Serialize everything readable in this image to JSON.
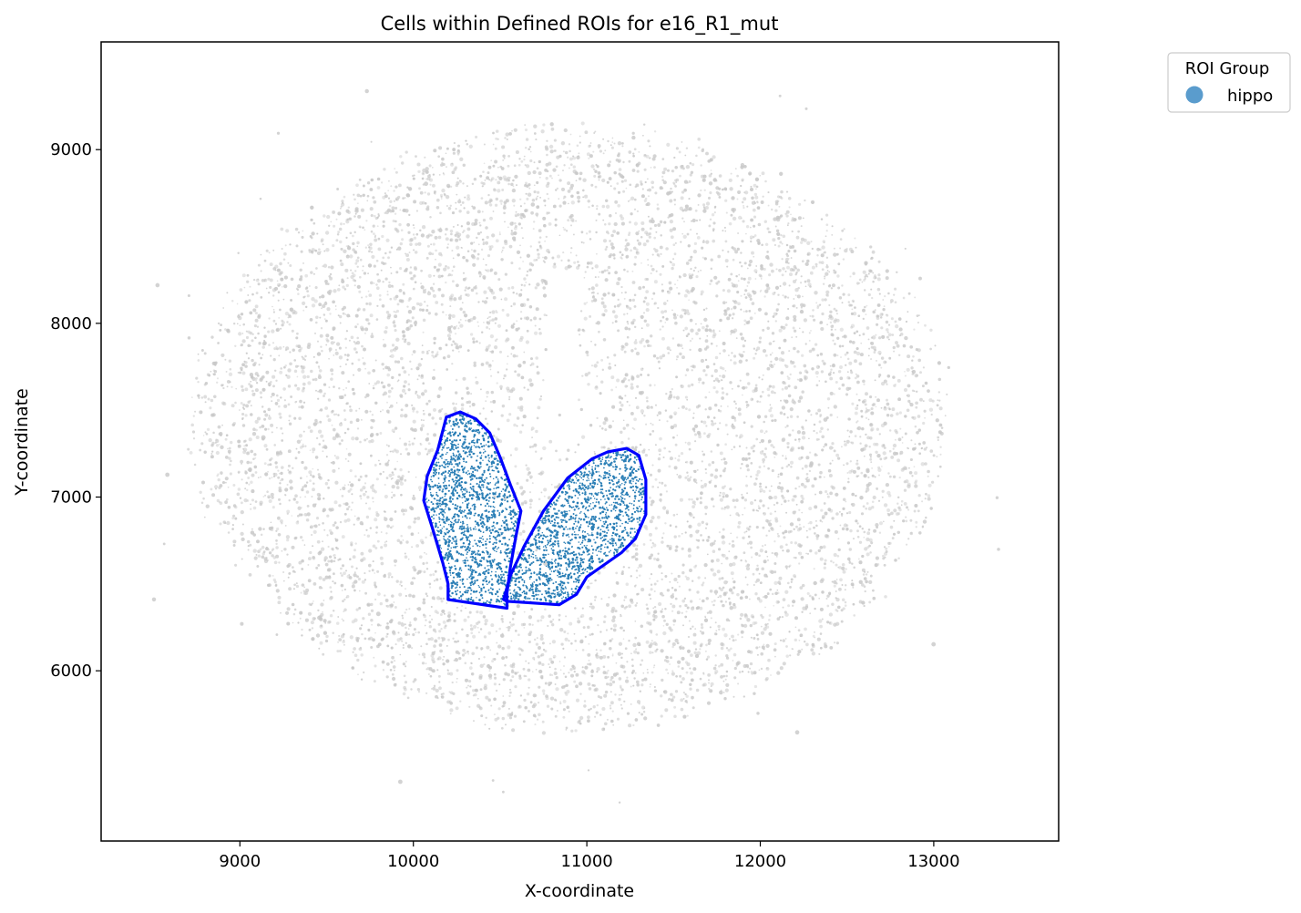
{
  "chart_data": {
    "type": "scatter",
    "title": "Cells within Defined ROIs for e16_R1_mut",
    "xlabel": "X-coordinate",
    "ylabel": "Y-coordinate",
    "xlim": [
      8200,
      13720
    ],
    "ylim": [
      5020,
      9620
    ],
    "xticks": [
      9000,
      10000,
      11000,
      12000,
      13000
    ],
    "yticks": [
      6000,
      7000,
      8000,
      9000
    ],
    "grid": false,
    "legend": {
      "title": "ROI Group",
      "placement": "outside-top-right",
      "entries": [
        {
          "label": "hippo",
          "color": "#5a9ccd"
        }
      ]
    },
    "background_cells": {
      "color": "#c8c8c8",
      "count_approx": 15000,
      "extent": {
        "center": [
          10900,
          7400
        ],
        "semi_axis_x": 2150,
        "semi_axis_y": 1750,
        "x_range": [
          8500,
          13470
        ],
        "y_range": [
          5230,
          9340
        ]
      },
      "note": "dense tissue section; cells absent in a central vertical gap around x 10850, y 7400-8300"
    },
    "roi_cells": {
      "color": "#2b7fb6",
      "group": "hippo"
    },
    "roi_boundaries": {
      "color": "#0000ff",
      "group": "hippo",
      "polygons": [
        [
          [
            10190,
            7460
          ],
          [
            10270,
            7490
          ],
          [
            10360,
            7450
          ],
          [
            10440,
            7370
          ],
          [
            10500,
            7230
          ],
          [
            10560,
            7070
          ],
          [
            10620,
            6920
          ],
          [
            10590,
            6770
          ],
          [
            10560,
            6600
          ],
          [
            10540,
            6450
          ],
          [
            10540,
            6360
          ],
          [
            10200,
            6410
          ],
          [
            10200,
            6500
          ],
          [
            10170,
            6620
          ],
          [
            10110,
            6820
          ],
          [
            10060,
            6980
          ],
          [
            10080,
            7120
          ],
          [
            10140,
            7270
          ]
        ],
        [
          [
            10520,
            6410
          ],
          [
            10560,
            6550
          ],
          [
            10640,
            6720
          ],
          [
            10750,
            6920
          ],
          [
            10890,
            7110
          ],
          [
            11030,
            7220
          ],
          [
            11120,
            7260
          ],
          [
            11230,
            7280
          ],
          [
            11300,
            7240
          ],
          [
            11340,
            7100
          ],
          [
            11340,
            6900
          ],
          [
            11280,
            6760
          ],
          [
            11200,
            6680
          ],
          [
            11000,
            6540
          ],
          [
            10940,
            6440
          ],
          [
            10840,
            6380
          ],
          [
            10540,
            6400
          ]
        ]
      ]
    }
  }
}
